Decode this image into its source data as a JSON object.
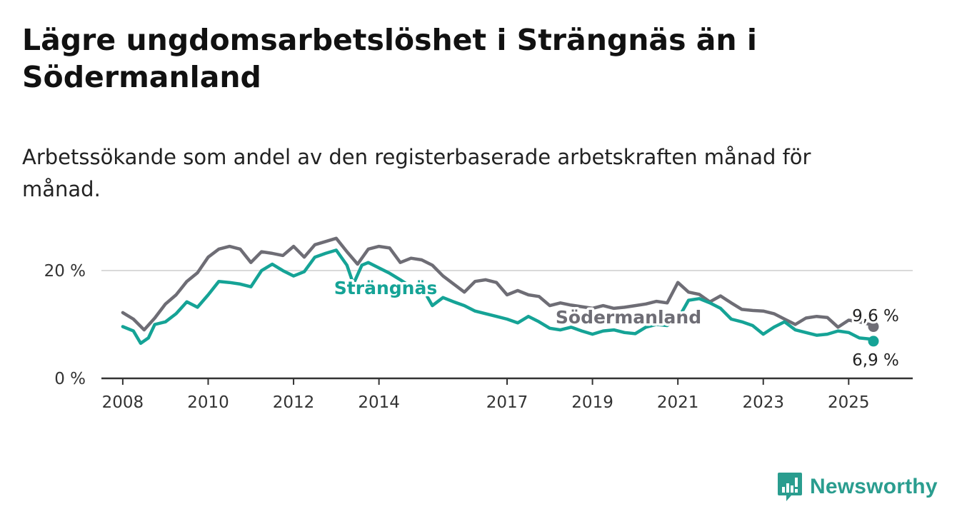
{
  "title": "Lägre ungdomsarbetslöshet i Strängnäs än i Södermanland",
  "subtitle": "Arbetssökande som andel av den registerbaserade arbetskraften månad för månad.",
  "brand": {
    "name": "Newsworthy",
    "icon": "newsworthy-logo-icon",
    "color": "#2a9d8f"
  },
  "chart_data": {
    "type": "line",
    "title": "Lägre ungdomsarbetslöshet i Strängnäs än i Södermanland",
    "subtitle": "Arbetssökande som andel av den registerbaserade arbetskraften månad för månad.",
    "xlabel": "",
    "ylabel": "",
    "xlim": [
      2007.5,
      2026.5
    ],
    "ylim": [
      0,
      26.5
    ],
    "x_ticks": [
      2008,
      2010,
      2012,
      2014,
      2017,
      2019,
      2021,
      2023,
      2025
    ],
    "x_tick_labels": [
      "2008",
      "2010",
      "2012",
      "2014",
      "2017",
      "2019",
      "2021",
      "2023",
      "2025"
    ],
    "y_ticks": [
      0,
      20
    ],
    "y_tick_labels": [
      "0 %",
      "20 %"
    ],
    "grid": "horizontal",
    "legend": "direct labels on lines",
    "series": [
      {
        "name": "Södermanland",
        "color": "#6e6d75",
        "end_label": "9,6 %",
        "points": [
          [
            2008.0,
            12.2
          ],
          [
            2008.25,
            11.0
          ],
          [
            2008.5,
            9.0
          ],
          [
            2008.75,
            11.2
          ],
          [
            2009.0,
            13.8
          ],
          [
            2009.25,
            15.5
          ],
          [
            2009.5,
            18.0
          ],
          [
            2009.75,
            19.6
          ],
          [
            2010.0,
            22.5
          ],
          [
            2010.25,
            24.0
          ],
          [
            2010.5,
            24.5
          ],
          [
            2010.75,
            24.0
          ],
          [
            2011.0,
            21.5
          ],
          [
            2011.25,
            23.5
          ],
          [
            2011.5,
            23.2
          ],
          [
            2011.75,
            22.8
          ],
          [
            2012.0,
            24.5
          ],
          [
            2012.25,
            22.5
          ],
          [
            2012.5,
            24.8
          ],
          [
            2012.75,
            25.4
          ],
          [
            2013.0,
            26.0
          ],
          [
            2013.25,
            23.5
          ],
          [
            2013.5,
            21.2
          ],
          [
            2013.75,
            24.0
          ],
          [
            2014.0,
            24.5
          ],
          [
            2014.25,
            24.2
          ],
          [
            2014.5,
            21.5
          ],
          [
            2014.75,
            22.3
          ],
          [
            2015.0,
            22.0
          ],
          [
            2015.25,
            21.0
          ],
          [
            2015.5,
            19.0
          ],
          [
            2015.75,
            17.5
          ],
          [
            2016.0,
            16.0
          ],
          [
            2016.25,
            18.0
          ],
          [
            2016.5,
            18.3
          ],
          [
            2016.75,
            17.8
          ],
          [
            2017.0,
            15.5
          ],
          [
            2017.25,
            16.3
          ],
          [
            2017.5,
            15.5
          ],
          [
            2017.75,
            15.2
          ],
          [
            2018.0,
            13.5
          ],
          [
            2018.25,
            14.0
          ],
          [
            2018.5,
            13.6
          ],
          [
            2018.75,
            13.3
          ],
          [
            2019.0,
            13.0
          ],
          [
            2019.25,
            13.5
          ],
          [
            2019.5,
            13.0
          ],
          [
            2019.75,
            13.2
          ],
          [
            2020.0,
            13.5
          ],
          [
            2020.25,
            13.8
          ],
          [
            2020.5,
            14.3
          ],
          [
            2020.75,
            14.0
          ],
          [
            2021.0,
            17.8
          ],
          [
            2021.25,
            16.0
          ],
          [
            2021.5,
            15.6
          ],
          [
            2021.75,
            14.2
          ],
          [
            2022.0,
            15.3
          ],
          [
            2022.25,
            14.0
          ],
          [
            2022.5,
            12.8
          ],
          [
            2022.75,
            12.6
          ],
          [
            2023.0,
            12.5
          ],
          [
            2023.25,
            12.0
          ],
          [
            2023.5,
            11.0
          ],
          [
            2023.75,
            10.0
          ],
          [
            2024.0,
            11.2
          ],
          [
            2024.25,
            11.5
          ],
          [
            2024.5,
            11.3
          ],
          [
            2024.75,
            9.5
          ],
          [
            2025.0,
            10.8
          ],
          [
            2025.25,
            10.5
          ],
          [
            2025.5,
            10.0
          ],
          [
            2025.58,
            9.6
          ]
        ]
      },
      {
        "name": "Strängnäs",
        "color": "#15a396",
        "end_label": "6,9 %",
        "points": [
          [
            2008.0,
            9.6
          ],
          [
            2008.25,
            8.8
          ],
          [
            2008.42,
            6.5
          ],
          [
            2008.6,
            7.5
          ],
          [
            2008.75,
            10.0
          ],
          [
            2009.0,
            10.5
          ],
          [
            2009.25,
            12.0
          ],
          [
            2009.5,
            14.2
          ],
          [
            2009.75,
            13.2
          ],
          [
            2010.0,
            15.5
          ],
          [
            2010.25,
            18.0
          ],
          [
            2010.5,
            17.8
          ],
          [
            2010.75,
            17.5
          ],
          [
            2011.0,
            17.0
          ],
          [
            2011.25,
            20.0
          ],
          [
            2011.5,
            21.2
          ],
          [
            2011.75,
            20.0
          ],
          [
            2012.0,
            19.0
          ],
          [
            2012.25,
            19.8
          ],
          [
            2012.5,
            22.5
          ],
          [
            2012.75,
            23.2
          ],
          [
            2013.0,
            23.8
          ],
          [
            2013.25,
            21.0
          ],
          [
            2013.4,
            17.5
          ],
          [
            2013.6,
            21.0
          ],
          [
            2013.75,
            21.5
          ],
          [
            2014.0,
            20.5
          ],
          [
            2014.25,
            19.5
          ],
          [
            2014.5,
            18.3
          ],
          [
            2014.75,
            17.0
          ],
          [
            2015.0,
            17.0
          ],
          [
            2015.25,
            13.5
          ],
          [
            2015.5,
            15.0
          ],
          [
            2015.75,
            14.2
          ],
          [
            2016.0,
            13.5
          ],
          [
            2016.25,
            12.5
          ],
          [
            2016.5,
            12.0
          ],
          [
            2016.75,
            11.5
          ],
          [
            2017.0,
            11.0
          ],
          [
            2017.25,
            10.3
          ],
          [
            2017.5,
            11.5
          ],
          [
            2017.75,
            10.5
          ],
          [
            2018.0,
            9.3
          ],
          [
            2018.25,
            9.0
          ],
          [
            2018.5,
            9.5
          ],
          [
            2018.75,
            8.8
          ],
          [
            2019.0,
            8.2
          ],
          [
            2019.25,
            8.8
          ],
          [
            2019.5,
            9.0
          ],
          [
            2019.75,
            8.5
          ],
          [
            2020.0,
            8.3
          ],
          [
            2020.25,
            9.5
          ],
          [
            2020.5,
            10.0
          ],
          [
            2020.75,
            9.8
          ],
          [
            2021.0,
            11.0
          ],
          [
            2021.25,
            14.5
          ],
          [
            2021.5,
            14.8
          ],
          [
            2021.75,
            14.0
          ],
          [
            2022.0,
            13.0
          ],
          [
            2022.25,
            11.0
          ],
          [
            2022.5,
            10.5
          ],
          [
            2022.75,
            9.8
          ],
          [
            2023.0,
            8.2
          ],
          [
            2023.25,
            9.5
          ],
          [
            2023.5,
            10.5
          ],
          [
            2023.75,
            9.0
          ],
          [
            2024.0,
            8.5
          ],
          [
            2024.25,
            8.0
          ],
          [
            2024.5,
            8.2
          ],
          [
            2024.75,
            8.8
          ],
          [
            2025.0,
            8.5
          ],
          [
            2025.25,
            7.5
          ],
          [
            2025.5,
            7.3
          ],
          [
            2025.58,
            6.9
          ]
        ]
      }
    ]
  }
}
